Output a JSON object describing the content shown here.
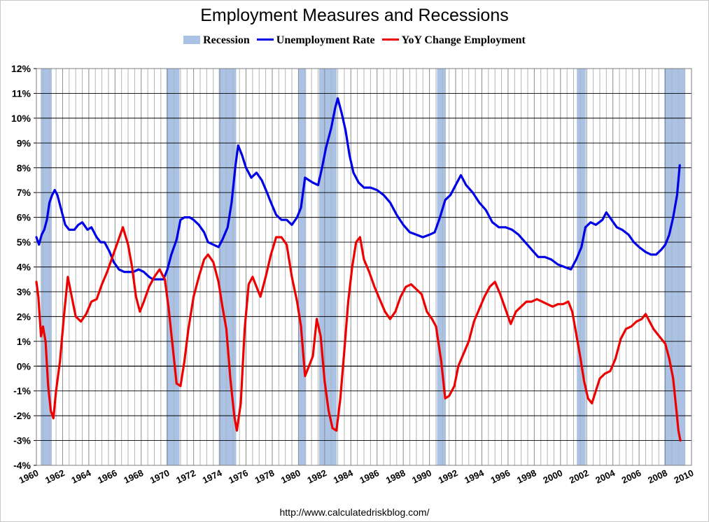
{
  "chart_data": {
    "type": "line",
    "title": "Employment Measures and Recessions",
    "source": "http://www.calculatedriskblog.com/",
    "xlim": [
      1960,
      2010
    ],
    "ylim": [
      -4,
      12
    ],
    "x_ticks": [
      "1960",
      "1962",
      "1964",
      "1966",
      "1968",
      "1970",
      "1972",
      "1974",
      "1976",
      "1978",
      "1980",
      "1982",
      "1984",
      "1986",
      "1988",
      "1990",
      "1992",
      "1994",
      "1996",
      "1998",
      "2000",
      "2002",
      "2004",
      "2006",
      "2008",
      "2010"
    ],
    "y_ticks": [
      "12%",
      "11%",
      "10%",
      "9%",
      "8%",
      "7%",
      "6%",
      "5%",
      "4%",
      "3%",
      "2%",
      "1%",
      "0%",
      "-1%",
      "-2%",
      "-3%",
      "-4%"
    ],
    "grid": true,
    "legend": {
      "position": "top",
      "items": [
        {
          "label": "Recession",
          "kind": "box",
          "color": "#a9c2e6"
        },
        {
          "label": "Unemployment Rate",
          "kind": "line",
          "color": "#0000e6"
        },
        {
          "label": "YoY Change Employment",
          "kind": "line",
          "color": "#ee0000"
        }
      ]
    },
    "recessions": [
      [
        1960.33,
        1961.17
      ],
      [
        1969.92,
        1970.92
      ],
      [
        1973.92,
        1975.25
      ],
      [
        1980.0,
        1980.58
      ],
      [
        1981.58,
        1982.92
      ],
      [
        1990.58,
        1991.25
      ],
      [
        2001.25,
        2001.92
      ],
      [
        2007.92,
        2009.5
      ]
    ],
    "series": [
      {
        "name": "Unemployment Rate",
        "color": "#0000e6",
        "points": [
          [
            1960.0,
            5.2
          ],
          [
            1960.2,
            4.9
          ],
          [
            1960.4,
            5.3
          ],
          [
            1960.6,
            5.5
          ],
          [
            1960.8,
            5.9
          ],
          [
            1961.0,
            6.6
          ],
          [
            1961.2,
            6.9
          ],
          [
            1961.4,
            7.1
          ],
          [
            1961.6,
            6.9
          ],
          [
            1961.9,
            6.3
          ],
          [
            1962.2,
            5.7
          ],
          [
            1962.5,
            5.5
          ],
          [
            1962.9,
            5.5
          ],
          [
            1963.2,
            5.7
          ],
          [
            1963.5,
            5.8
          ],
          [
            1963.9,
            5.5
          ],
          [
            1964.2,
            5.6
          ],
          [
            1964.6,
            5.2
          ],
          [
            1964.9,
            5.0
          ],
          [
            1965.2,
            5.0
          ],
          [
            1965.6,
            4.6
          ],
          [
            1965.9,
            4.2
          ],
          [
            1966.3,
            3.9
          ],
          [
            1966.7,
            3.8
          ],
          [
            1967.0,
            3.8
          ],
          [
            1967.4,
            3.8
          ],
          [
            1967.8,
            3.9
          ],
          [
            1968.2,
            3.8
          ],
          [
            1968.6,
            3.6
          ],
          [
            1968.9,
            3.5
          ],
          [
            1969.3,
            3.5
          ],
          [
            1969.7,
            3.5
          ],
          [
            1970.0,
            3.9
          ],
          [
            1970.3,
            4.5
          ],
          [
            1970.7,
            5.1
          ],
          [
            1971.0,
            5.9
          ],
          [
            1971.3,
            6.0
          ],
          [
            1971.7,
            6.0
          ],
          [
            1972.0,
            5.9
          ],
          [
            1972.4,
            5.7
          ],
          [
            1972.8,
            5.4
          ],
          [
            1973.1,
            5.0
          ],
          [
            1973.5,
            4.9
          ],
          [
            1973.9,
            4.8
          ],
          [
            1974.2,
            5.1
          ],
          [
            1974.6,
            5.6
          ],
          [
            1974.9,
            6.6
          ],
          [
            1975.2,
            8.1
          ],
          [
            1975.4,
            8.9
          ],
          [
            1975.7,
            8.5
          ],
          [
            1976.0,
            8.0
          ],
          [
            1976.4,
            7.6
          ],
          [
            1976.8,
            7.8
          ],
          [
            1977.2,
            7.5
          ],
          [
            1977.6,
            7.0
          ],
          [
            1977.9,
            6.6
          ],
          [
            1978.3,
            6.1
          ],
          [
            1978.7,
            5.9
          ],
          [
            1979.1,
            5.9
          ],
          [
            1979.5,
            5.7
          ],
          [
            1979.9,
            6.0
          ],
          [
            1980.2,
            6.4
          ],
          [
            1980.5,
            7.6
          ],
          [
            1980.8,
            7.5
          ],
          [
            1981.1,
            7.4
          ],
          [
            1981.5,
            7.3
          ],
          [
            1981.8,
            8.0
          ],
          [
            1982.1,
            8.8
          ],
          [
            1982.5,
            9.6
          ],
          [
            1982.8,
            10.4
          ],
          [
            1983.0,
            10.8
          ],
          [
            1983.3,
            10.2
          ],
          [
            1983.6,
            9.5
          ],
          [
            1983.9,
            8.5
          ],
          [
            1984.2,
            7.8
          ],
          [
            1984.6,
            7.4
          ],
          [
            1985.0,
            7.2
          ],
          [
            1985.5,
            7.2
          ],
          [
            1986.0,
            7.1
          ],
          [
            1986.5,
            6.9
          ],
          [
            1987.0,
            6.6
          ],
          [
            1987.5,
            6.1
          ],
          [
            1988.0,
            5.7
          ],
          [
            1988.5,
            5.4
          ],
          [
            1989.0,
            5.3
          ],
          [
            1989.5,
            5.2
          ],
          [
            1990.0,
            5.3
          ],
          [
            1990.4,
            5.4
          ],
          [
            1990.8,
            6.0
          ],
          [
            1991.2,
            6.7
          ],
          [
            1991.6,
            6.9
          ],
          [
            1992.0,
            7.3
          ],
          [
            1992.4,
            7.7
          ],
          [
            1992.8,
            7.3
          ],
          [
            1993.3,
            7.0
          ],
          [
            1993.8,
            6.6
          ],
          [
            1994.3,
            6.3
          ],
          [
            1994.8,
            5.8
          ],
          [
            1995.3,
            5.6
          ],
          [
            1995.8,
            5.6
          ],
          [
            1996.3,
            5.5
          ],
          [
            1996.8,
            5.3
          ],
          [
            1997.3,
            5.0
          ],
          [
            1997.8,
            4.7
          ],
          [
            1998.3,
            4.4
          ],
          [
            1998.8,
            4.4
          ],
          [
            1999.3,
            4.3
          ],
          [
            1999.8,
            4.1
          ],
          [
            2000.3,
            4.0
          ],
          [
            2000.8,
            3.9
          ],
          [
            2001.2,
            4.3
          ],
          [
            2001.6,
            4.8
          ],
          [
            2001.9,
            5.6
          ],
          [
            2002.3,
            5.8
          ],
          [
            2002.7,
            5.7
          ],
          [
            2003.2,
            5.9
          ],
          [
            2003.5,
            6.2
          ],
          [
            2003.9,
            5.9
          ],
          [
            2004.3,
            5.6
          ],
          [
            2004.7,
            5.5
          ],
          [
            2005.2,
            5.3
          ],
          [
            2005.6,
            5.0
          ],
          [
            2006.0,
            4.8
          ],
          [
            2006.5,
            4.6
          ],
          [
            2006.9,
            4.5
          ],
          [
            2007.3,
            4.5
          ],
          [
            2007.7,
            4.7
          ],
          [
            2008.0,
            4.9
          ],
          [
            2008.3,
            5.3
          ],
          [
            2008.6,
            6.0
          ],
          [
            2008.9,
            6.9
          ],
          [
            2009.1,
            8.1
          ]
        ]
      },
      {
        "name": "YoY Change Employment",
        "color": "#ee0000",
        "points": [
          [
            1960.0,
            3.4
          ],
          [
            1960.15,
            2.8
          ],
          [
            1960.35,
            1.2
          ],
          [
            1960.5,
            1.6
          ],
          [
            1960.7,
            1.0
          ],
          [
            1960.9,
            -0.8
          ],
          [
            1961.1,
            -1.8
          ],
          [
            1961.3,
            -2.1
          ],
          [
            1961.5,
            -1.0
          ],
          [
            1961.8,
            0.2
          ],
          [
            1962.1,
            2.0
          ],
          [
            1962.4,
            3.6
          ],
          [
            1962.7,
            2.8
          ],
          [
            1963.0,
            2.0
          ],
          [
            1963.4,
            1.8
          ],
          [
            1963.8,
            2.1
          ],
          [
            1964.2,
            2.6
          ],
          [
            1964.6,
            2.7
          ],
          [
            1965.0,
            3.3
          ],
          [
            1965.4,
            3.8
          ],
          [
            1965.8,
            4.4
          ],
          [
            1966.2,
            5.0
          ],
          [
            1966.6,
            5.6
          ],
          [
            1967.0,
            4.9
          ],
          [
            1967.3,
            4.0
          ],
          [
            1967.6,
            2.8
          ],
          [
            1967.9,
            2.2
          ],
          [
            1968.2,
            2.6
          ],
          [
            1968.6,
            3.2
          ],
          [
            1969.0,
            3.6
          ],
          [
            1969.4,
            3.9
          ],
          [
            1969.8,
            3.5
          ],
          [
            1970.1,
            2.3
          ],
          [
            1970.4,
            0.8
          ],
          [
            1970.7,
            -0.7
          ],
          [
            1971.0,
            -0.8
          ],
          [
            1971.3,
            0.2
          ],
          [
            1971.6,
            1.5
          ],
          [
            1972.0,
            2.8
          ],
          [
            1972.4,
            3.6
          ],
          [
            1972.8,
            4.3
          ],
          [
            1973.1,
            4.5
          ],
          [
            1973.5,
            4.2
          ],
          [
            1973.9,
            3.4
          ],
          [
            1974.2,
            2.4
          ],
          [
            1974.5,
            1.5
          ],
          [
            1974.8,
            -0.5
          ],
          [
            1975.1,
            -2.0
          ],
          [
            1975.3,
            -2.6
          ],
          [
            1975.6,
            -1.5
          ],
          [
            1975.9,
            1.5
          ],
          [
            1976.2,
            3.3
          ],
          [
            1976.5,
            3.6
          ],
          [
            1976.8,
            3.2
          ],
          [
            1977.1,
            2.8
          ],
          [
            1977.5,
            3.6
          ],
          [
            1977.9,
            4.5
          ],
          [
            1978.3,
            5.2
          ],
          [
            1978.7,
            5.2
          ],
          [
            1979.1,
            4.9
          ],
          [
            1979.5,
            3.6
          ],
          [
            1979.9,
            2.6
          ],
          [
            1980.2,
            1.6
          ],
          [
            1980.5,
            -0.4
          ],
          [
            1980.8,
            0.0
          ],
          [
            1981.1,
            0.4
          ],
          [
            1981.4,
            1.9
          ],
          [
            1981.7,
            1.2
          ],
          [
            1982.0,
            -0.6
          ],
          [
            1982.3,
            -1.8
          ],
          [
            1982.6,
            -2.5
          ],
          [
            1982.9,
            -2.6
          ],
          [
            1983.2,
            -1.3
          ],
          [
            1983.5,
            0.6
          ],
          [
            1983.8,
            2.6
          ],
          [
            1984.1,
            4.0
          ],
          [
            1984.4,
            5.0
          ],
          [
            1984.7,
            5.2
          ],
          [
            1985.0,
            4.3
          ],
          [
            1985.4,
            3.8
          ],
          [
            1985.8,
            3.2
          ],
          [
            1986.2,
            2.7
          ],
          [
            1986.6,
            2.2
          ],
          [
            1987.0,
            1.9
          ],
          [
            1987.4,
            2.2
          ],
          [
            1987.8,
            2.8
          ],
          [
            1988.2,
            3.2
          ],
          [
            1988.6,
            3.3
          ],
          [
            1989.0,
            3.1
          ],
          [
            1989.4,
            2.9
          ],
          [
            1989.8,
            2.2
          ],
          [
            1990.2,
            1.9
          ],
          [
            1990.5,
            1.6
          ],
          [
            1990.9,
            0.2
          ],
          [
            1991.2,
            -1.3
          ],
          [
            1991.5,
            -1.2
          ],
          [
            1991.9,
            -0.8
          ],
          [
            1992.2,
            0.0
          ],
          [
            1992.6,
            0.5
          ],
          [
            1993.0,
            1.0
          ],
          [
            1993.4,
            1.8
          ],
          [
            1993.8,
            2.3
          ],
          [
            1994.2,
            2.8
          ],
          [
            1994.6,
            3.2
          ],
          [
            1995.0,
            3.4
          ],
          [
            1995.4,
            2.9
          ],
          [
            1995.8,
            2.3
          ],
          [
            1996.2,
            1.7
          ],
          [
            1996.6,
            2.2
          ],
          [
            1997.0,
            2.4
          ],
          [
            1997.4,
            2.6
          ],
          [
            1997.8,
            2.6
          ],
          [
            1998.2,
            2.7
          ],
          [
            1998.6,
            2.6
          ],
          [
            1999.0,
            2.5
          ],
          [
            1999.4,
            2.4
          ],
          [
            1999.8,
            2.5
          ],
          [
            2000.2,
            2.5
          ],
          [
            2000.6,
            2.6
          ],
          [
            2000.9,
            2.2
          ],
          [
            2001.2,
            1.3
          ],
          [
            2001.5,
            0.4
          ],
          [
            2001.8,
            -0.6
          ],
          [
            2002.1,
            -1.3
          ],
          [
            2002.4,
            -1.5
          ],
          [
            2002.7,
            -1.0
          ],
          [
            2003.0,
            -0.5
          ],
          [
            2003.4,
            -0.3
          ],
          [
            2003.8,
            -0.2
          ],
          [
            2004.2,
            0.3
          ],
          [
            2004.6,
            1.1
          ],
          [
            2005.0,
            1.5
          ],
          [
            2005.4,
            1.6
          ],
          [
            2005.8,
            1.8
          ],
          [
            2006.2,
            1.9
          ],
          [
            2006.5,
            2.1
          ],
          [
            2006.8,
            1.8
          ],
          [
            2007.1,
            1.5
          ],
          [
            2007.4,
            1.3
          ],
          [
            2007.7,
            1.1
          ],
          [
            2008.0,
            0.9
          ],
          [
            2008.3,
            0.3
          ],
          [
            2008.6,
            -0.5
          ],
          [
            2008.85,
            -1.8
          ],
          [
            2009.0,
            -2.6
          ],
          [
            2009.15,
            -3.0
          ]
        ]
      }
    ]
  }
}
